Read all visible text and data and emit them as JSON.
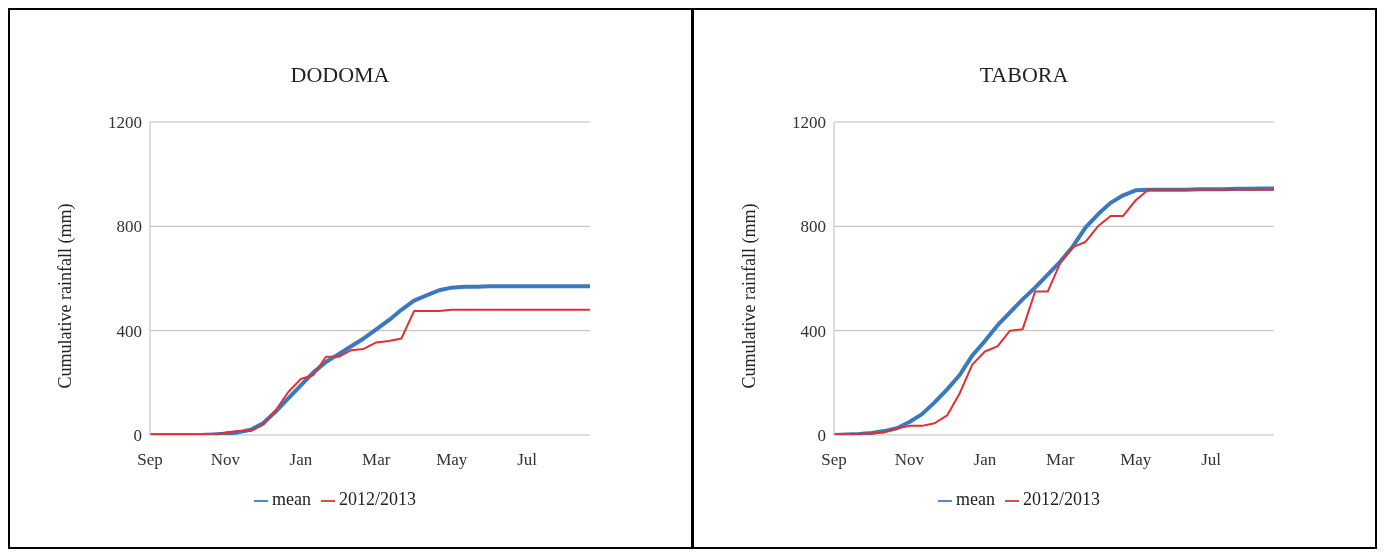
{
  "chart_data": [
    {
      "type": "line",
      "title": "DODOMA",
      "ylabel": "Cumulative rainfall (mm)",
      "categories": [
        "Sep",
        null,
        null,
        null,
        null,
        null,
        "Nov",
        null,
        null,
        null,
        null,
        null,
        "Jan",
        null,
        null,
        null,
        null,
        null,
        "Mar",
        null,
        null,
        null,
        null,
        null,
        "May",
        null,
        null,
        null,
        null,
        null,
        "Jul",
        null,
        null,
        null,
        null,
        null
      ],
      "series": [
        {
          "name": "mean",
          "color": "#3a78c0",
          "values": [
            0,
            0,
            0,
            0,
            0,
            2,
            5,
            10,
            20,
            45,
            90,
            140,
            190,
            240,
            280,
            310,
            340,
            370,
            405,
            440,
            480,
            515,
            535,
            555,
            565,
            568,
            568,
            570,
            570,
            570,
            570,
            570,
            570,
            570,
            570,
            570
          ]
        },
        {
          "name": "2012/2013",
          "color": "#e03030",
          "values": [
            0,
            0,
            0,
            0,
            0,
            0,
            10,
            15,
            15,
            40,
            95,
            165,
            215,
            230,
            300,
            300,
            325,
            330,
            355,
            360,
            370,
            475,
            475,
            475,
            480,
            480,
            480,
            480,
            480,
            480,
            480,
            480,
            480,
            480,
            480,
            480
          ]
        }
      ],
      "ylim": [
        0,
        1200
      ],
      "yticks": [
        0,
        400,
        800,
        1200
      ],
      "grid": "y",
      "legend": "bottom",
      "marker": "none",
      "line_style": "solid"
    },
    {
      "type": "line",
      "title": "TABORA",
      "ylabel": "Cumulative rainfall (mm)",
      "categories": [
        "Sep",
        null,
        null,
        null,
        null,
        null,
        "Nov",
        null,
        null,
        null,
        null,
        null,
        "Jan",
        null,
        null,
        null,
        null,
        null,
        "Mar",
        null,
        null,
        null,
        null,
        null,
        "May",
        null,
        null,
        null,
        null,
        null,
        "Jul",
        null,
        null,
        null,
        null,
        null
      ],
      "series": [
        {
          "name": "mean",
          "color": "#3a78c0",
          "values": [
            0,
            2,
            4,
            8,
            15,
            26,
            50,
            80,
            125,
            175,
            230,
            305,
            360,
            420,
            470,
            520,
            565,
            615,
            665,
            723,
            795,
            846,
            890,
            919,
            938,
            940,
            940,
            940,
            940,
            942,
            942,
            942,
            944,
            944,
            945,
            945
          ]
        },
        {
          "name": "2012/2013",
          "color": "#e03030",
          "values": [
            0,
            0,
            5,
            8,
            10,
            25,
            35,
            35,
            45,
            75,
            160,
            270,
            320,
            340,
            400,
            405,
            550,
            550,
            660,
            720,
            740,
            800,
            840,
            840,
            900,
            940,
            940,
            940,
            940,
            940,
            940,
            940,
            940,
            940,
            940,
            940
          ]
        }
      ],
      "ylim": [
        0,
        1200
      ],
      "yticks": [
        0,
        400,
        800,
        1200
      ],
      "grid": "y",
      "legend": "bottom",
      "marker": "none",
      "line_style": "solid"
    }
  ]
}
